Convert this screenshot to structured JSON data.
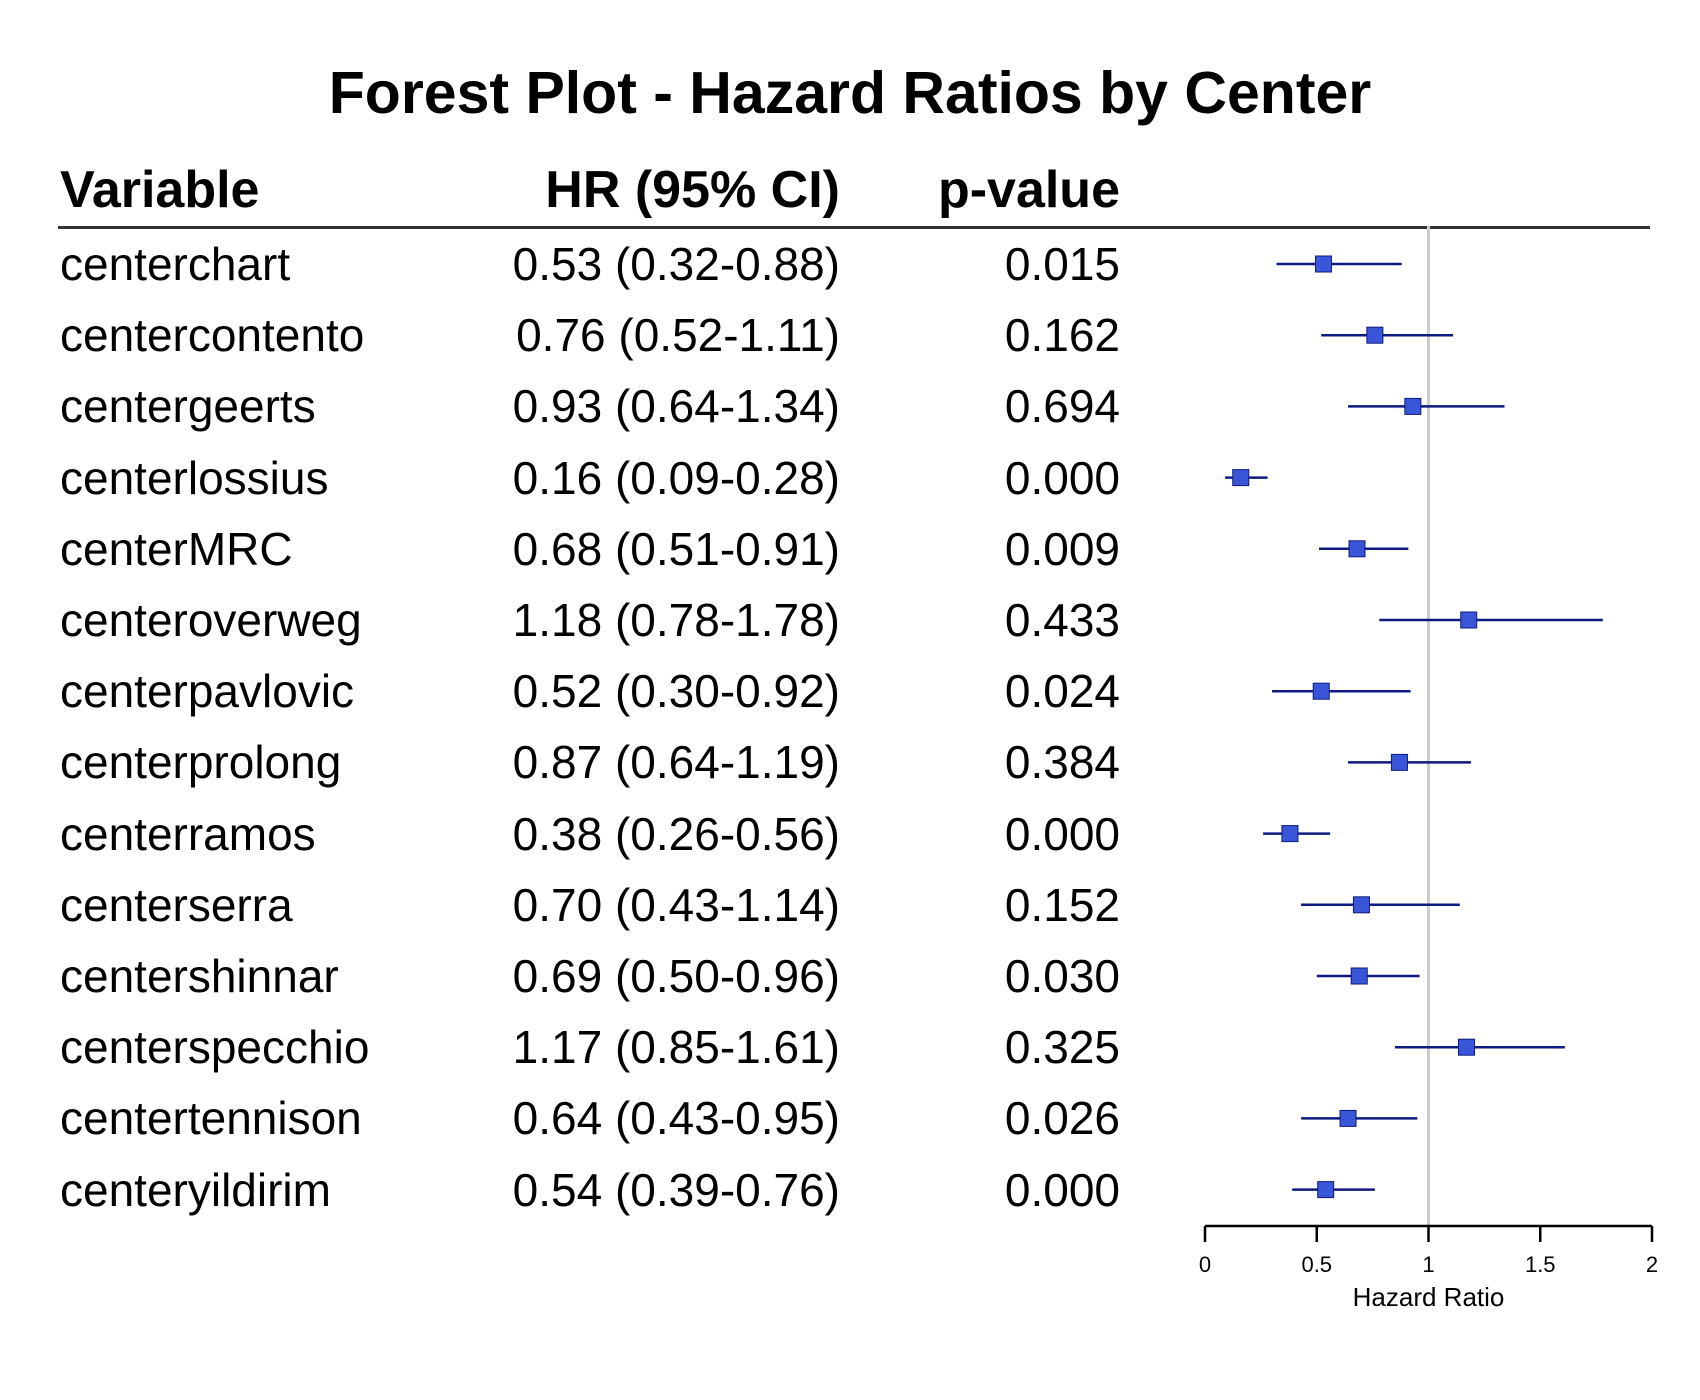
{
  "chart_data": {
    "type": "forest",
    "title": "Forest Plot - Hazard Ratios by Center",
    "columns": {
      "variable": "Variable",
      "hr": "HR (95% CI)",
      "p": "p-value"
    },
    "xlabel": "Hazard Ratio",
    "xlim": [
      0,
      2
    ],
    "xticks": [
      "0",
      "0.5",
      "1",
      "1.5",
      "2"
    ],
    "reference_line": 1,
    "colors": {
      "point": "#3a56d8",
      "ci_line": "#0d1a80",
      "reference": "#cccccc",
      "axis": "#000000"
    },
    "rows": [
      {
        "variable": "centerchart",
        "hr": 0.53,
        "lo": 0.32,
        "hi": 0.88,
        "hr_text": "0.53 (0.32-0.88)",
        "p": "0.015"
      },
      {
        "variable": "centercontento",
        "hr": 0.76,
        "lo": 0.52,
        "hi": 1.11,
        "hr_text": "0.76 (0.52-1.11)",
        "p": "0.162"
      },
      {
        "variable": "centergeerts",
        "hr": 0.93,
        "lo": 0.64,
        "hi": 1.34,
        "hr_text": "0.93 (0.64-1.34)",
        "p": "0.694"
      },
      {
        "variable": "centerlossius",
        "hr": 0.16,
        "lo": 0.09,
        "hi": 0.28,
        "hr_text": "0.16 (0.09-0.28)",
        "p": "0.000"
      },
      {
        "variable": "centerMRC",
        "hr": 0.68,
        "lo": 0.51,
        "hi": 0.91,
        "hr_text": "0.68 (0.51-0.91)",
        "p": "0.009"
      },
      {
        "variable": "centeroverweg",
        "hr": 1.18,
        "lo": 0.78,
        "hi": 1.78,
        "hr_text": "1.18 (0.78-1.78)",
        "p": "0.433"
      },
      {
        "variable": "centerpavlovic",
        "hr": 0.52,
        "lo": 0.3,
        "hi": 0.92,
        "hr_text": "0.52 (0.30-0.92)",
        "p": "0.024"
      },
      {
        "variable": "centerprolong",
        "hr": 0.87,
        "lo": 0.64,
        "hi": 1.19,
        "hr_text": "0.87 (0.64-1.19)",
        "p": "0.384"
      },
      {
        "variable": "centerramos",
        "hr": 0.38,
        "lo": 0.26,
        "hi": 0.56,
        "hr_text": "0.38 (0.26-0.56)",
        "p": "0.000"
      },
      {
        "variable": "centerserra",
        "hr": 0.7,
        "lo": 0.43,
        "hi": 1.14,
        "hr_text": "0.70 (0.43-1.14)",
        "p": "0.152"
      },
      {
        "variable": "centershinnar",
        "hr": 0.69,
        "lo": 0.5,
        "hi": 0.96,
        "hr_text": "0.69 (0.50-0.96)",
        "p": "0.030"
      },
      {
        "variable": "centerspecchio",
        "hr": 1.17,
        "lo": 0.85,
        "hi": 1.61,
        "hr_text": "1.17 (0.85-1.61)",
        "p": "0.325"
      },
      {
        "variable": "centertennison",
        "hr": 0.64,
        "lo": 0.43,
        "hi": 0.95,
        "hr_text": "0.64 (0.43-0.95)",
        "p": "0.026"
      },
      {
        "variable": "centeryildirim",
        "hr": 0.54,
        "lo": 0.39,
        "hi": 0.76,
        "hr_text": "0.54 (0.39-0.76)",
        "p": "0.000"
      }
    ]
  }
}
